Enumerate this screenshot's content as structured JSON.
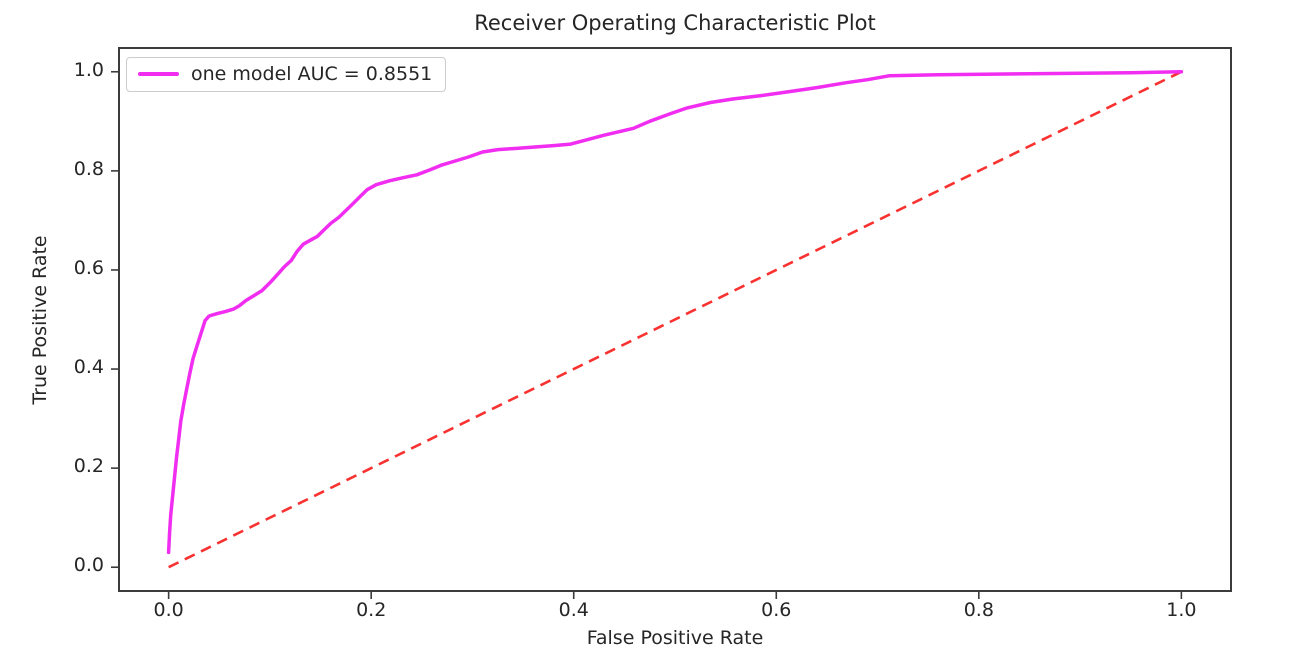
{
  "chart_data": {
    "type": "line",
    "title": "Receiver Operating Characteristic Plot",
    "xlabel": "False Positive Rate",
    "ylabel": "True Positive Rate",
    "xlim": [
      -0.05,
      1.05
    ],
    "ylim": [
      -0.05,
      1.05
    ],
    "x_ticks": [
      0.0,
      0.2,
      0.4,
      0.6,
      0.8,
      1.0
    ],
    "x_tick_labels": [
      "0.0",
      "0.2",
      "0.4",
      "0.6",
      "0.8",
      "1.0"
    ],
    "y_ticks": [
      0.0,
      0.2,
      0.4,
      0.6,
      0.8,
      1.0
    ],
    "y_tick_labels": [
      "0.0",
      "0.2",
      "0.4",
      "0.6",
      "0.8",
      "1.0"
    ],
    "grid": false,
    "legend_position": "upper left",
    "colors": {
      "roc_curve": "#f02df0",
      "chance_line": "#f83230",
      "spine": "#3b3b3b",
      "text": "#262626",
      "legend_border": "#cccccc"
    },
    "series": [
      {
        "name": "one model AUC = 0.8551",
        "auc": 0.8551,
        "style": "solid",
        "points": [
          [
            0.0,
            0.03
          ],
          [
            0.001,
            0.07
          ],
          [
            0.002,
            0.105
          ],
          [
            0.004,
            0.145
          ],
          [
            0.006,
            0.185
          ],
          [
            0.008,
            0.225
          ],
          [
            0.01,
            0.26
          ],
          [
            0.012,
            0.295
          ],
          [
            0.015,
            0.33
          ],
          [
            0.018,
            0.362
          ],
          [
            0.021,
            0.392
          ],
          [
            0.024,
            0.42
          ],
          [
            0.028,
            0.447
          ],
          [
            0.032,
            0.472
          ],
          [
            0.036,
            0.498
          ],
          [
            0.04,
            0.507
          ],
          [
            0.048,
            0.512
          ],
          [
            0.056,
            0.516
          ],
          [
            0.064,
            0.521
          ],
          [
            0.07,
            0.528
          ],
          [
            0.076,
            0.538
          ],
          [
            0.084,
            0.548
          ],
          [
            0.092,
            0.558
          ],
          [
            0.1,
            0.574
          ],
          [
            0.108,
            0.592
          ],
          [
            0.114,
            0.606
          ],
          [
            0.121,
            0.619
          ],
          [
            0.127,
            0.638
          ],
          [
            0.133,
            0.652
          ],
          [
            0.14,
            0.66
          ],
          [
            0.147,
            0.668
          ],
          [
            0.153,
            0.68
          ],
          [
            0.16,
            0.694
          ],
          [
            0.168,
            0.706
          ],
          [
            0.175,
            0.72
          ],
          [
            0.182,
            0.734
          ],
          [
            0.189,
            0.748
          ],
          [
            0.196,
            0.762
          ],
          [
            0.205,
            0.772
          ],
          [
            0.218,
            0.78
          ],
          [
            0.231,
            0.786
          ],
          [
            0.245,
            0.792
          ],
          [
            0.258,
            0.802
          ],
          [
            0.27,
            0.812
          ],
          [
            0.283,
            0.82
          ],
          [
            0.296,
            0.828
          ],
          [
            0.31,
            0.838
          ],
          [
            0.325,
            0.843
          ],
          [
            0.34,
            0.845
          ],
          [
            0.36,
            0.848
          ],
          [
            0.38,
            0.851
          ],
          [
            0.397,
            0.854
          ],
          [
            0.412,
            0.862
          ],
          [
            0.43,
            0.872
          ],
          [
            0.447,
            0.88
          ],
          [
            0.459,
            0.886
          ],
          [
            0.475,
            0.9
          ],
          [
            0.495,
            0.915
          ],
          [
            0.512,
            0.927
          ],
          [
            0.535,
            0.938
          ],
          [
            0.557,
            0.945
          ],
          [
            0.585,
            0.952
          ],
          [
            0.613,
            0.96
          ],
          [
            0.64,
            0.968
          ],
          [
            0.669,
            0.978
          ],
          [
            0.69,
            0.984
          ],
          [
            0.712,
            0.992
          ],
          [
            0.76,
            0.994
          ],
          [
            0.85,
            0.996
          ],
          [
            0.95,
            0.998
          ],
          [
            1.0,
            1.0
          ]
        ]
      }
    ],
    "reference_line": {
      "name": "chance diagonal",
      "style": "dashed",
      "from": [
        0.0,
        0.0
      ],
      "to": [
        1.0,
        1.0
      ]
    }
  },
  "legend": {
    "label": "one model AUC = 0.8551"
  }
}
